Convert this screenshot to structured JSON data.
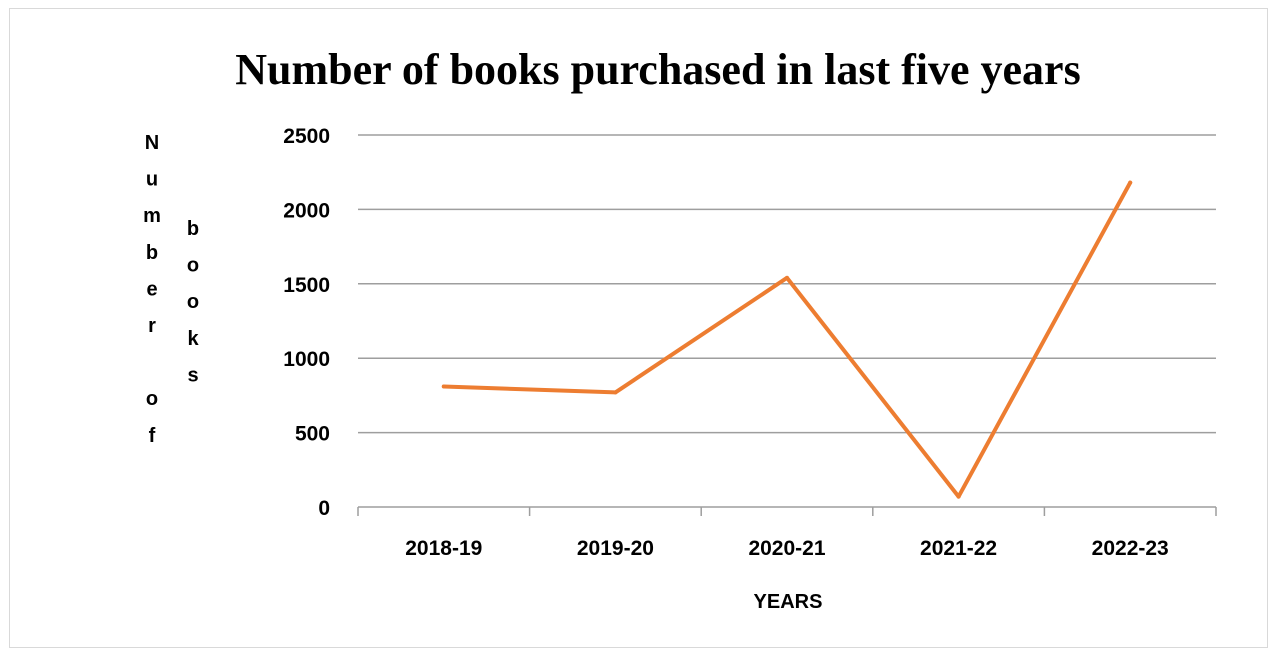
{
  "chart_data": {
    "type": "line",
    "title": "Number of books purchased in last five years",
    "xlabel": "YEARS",
    "ylabel_col1": [
      "N",
      "u",
      "m",
      "b",
      "e",
      "r",
      "",
      "o",
      "f"
    ],
    "ylabel_col2": [
      "b",
      "o",
      "o",
      "k",
      "s"
    ],
    "categories": [
      "2018-19",
      "2019-20",
      "2020-21",
      "2021-22",
      "2022-23"
    ],
    "series": [
      {
        "values": [
          810,
          770,
          1540,
          70,
          2180
        ],
        "color": "#ed7d31"
      }
    ],
    "ylim": [
      0,
      2500
    ],
    "yticks": [
      0,
      500,
      1000,
      1500,
      2000,
      2500
    ],
    "grid": true,
    "legend": "none",
    "colors": {
      "line": "#ed7d31",
      "grid": "#9e9e9e",
      "axis": "#9e9e9e",
      "text": "#000000"
    }
  }
}
